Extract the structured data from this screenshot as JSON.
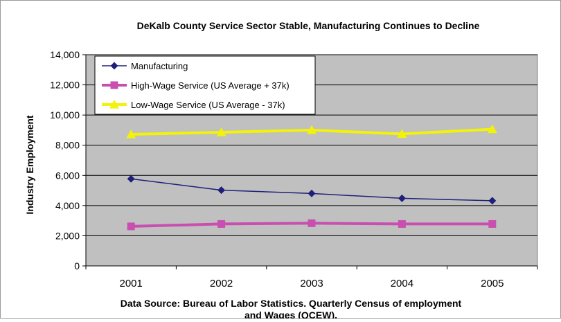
{
  "chart_data": {
    "type": "line",
    "title": "DeKalb County Service Sector Stable, Manufacturing Continues to Decline",
    "xlabel": "Data Source: Bureau of Labor Statistics. Quarterly Census of employment and Wages (QCEW).",
    "xlabel_lines": [
      "Data Source: Bureau of Labor Statistics. Quarterly Census of employment",
      "and Wages (QCEW)."
    ],
    "ylabel": "Industry Employment",
    "categories": [
      "2001",
      "2002",
      "2003",
      "2004",
      "2005"
    ],
    "ylim": [
      0,
      14000
    ],
    "yticks": [
      0,
      2000,
      4000,
      6000,
      8000,
      10000,
      12000,
      14000
    ],
    "ytick_labels": [
      "0",
      "2,000",
      "4,000",
      "6,000",
      "8,000",
      "10,000",
      "12,000",
      "14,000"
    ],
    "grid": true,
    "legend_position": "top-left",
    "plot_background": "#c0c0c0",
    "series": [
      {
        "name": "Manufacturing",
        "values": [
          5770,
          5020,
          4800,
          4480,
          4320
        ],
        "color": "#1f1f7a",
        "marker": "diamond"
      },
      {
        "name": "High-Wage Service (US Average + 37k)",
        "values": [
          2620,
          2780,
          2830,
          2780,
          2780
        ],
        "color": "#c84fb0",
        "marker": "square"
      },
      {
        "name": "Low-Wage Service (US Average - 37k)",
        "values": [
          8720,
          8860,
          9000,
          8750,
          9060
        ],
        "color": "#f2f20a",
        "marker": "triangle"
      }
    ]
  }
}
